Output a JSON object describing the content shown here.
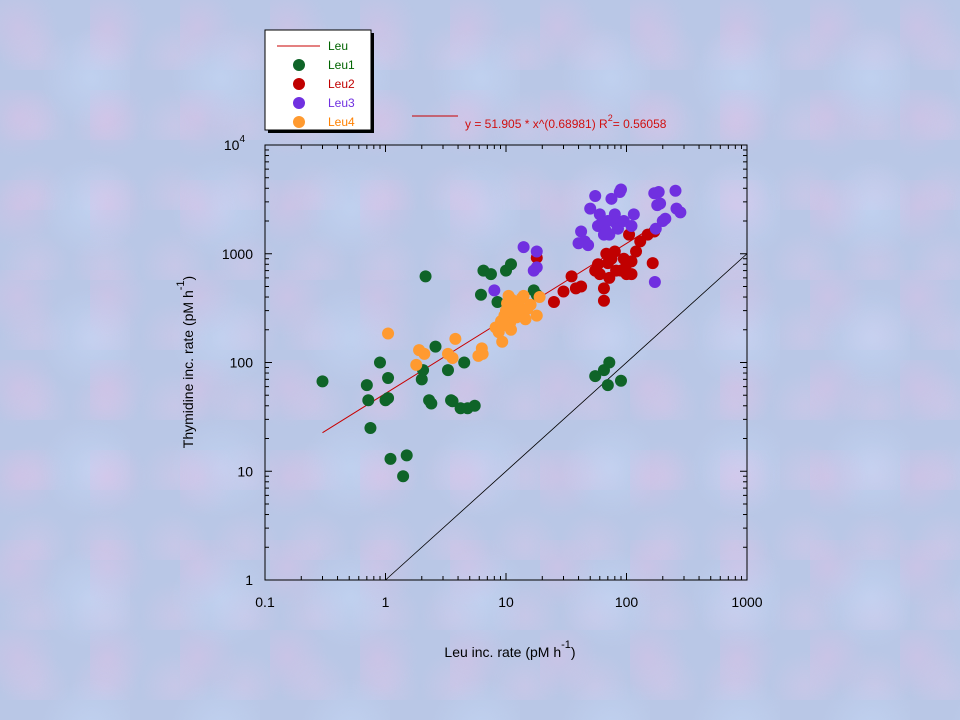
{
  "chart_data": {
    "type": "scatter",
    "xscale": "log",
    "yscale": "log",
    "xlim": [
      0.1,
      1000
    ],
    "ylim": [
      1,
      10000
    ],
    "xticks": [
      "0.1",
      "1",
      "10",
      "100",
      "1000"
    ],
    "yticks": [
      {
        "base": "1",
        "sup": ""
      },
      {
        "base": "10",
        "sup": ""
      },
      {
        "base": "100",
        "sup": ""
      },
      {
        "base": "1000",
        "sup": ""
      },
      {
        "base": "10",
        "sup": "4"
      }
    ],
    "xlabel": {
      "text": "Leu inc. rate (pM h",
      "sup": "-1",
      "close": ")"
    },
    "ylabel": {
      "text": "Thymidine inc. rate (pM h",
      "sup": "-1",
      "close": ")"
    },
    "legend": {
      "placement": "top-left, above plot",
      "entries": [
        {
          "label": "Leu",
          "marker": "line",
          "color": "#c80000",
          "text_color": "#006400"
        },
        {
          "label": "Leu1",
          "marker": "circle",
          "color": "#0f6428",
          "text_color": "#006400"
        },
        {
          "label": "Leu2",
          "marker": "circle",
          "color": "#c00000",
          "text_color": "#c00000"
        },
        {
          "label": "Leu3",
          "marker": "circle",
          "color": "#7030e0",
          "text_color": "#7030e0"
        },
        {
          "label": "Leu4",
          "marker": "circle",
          "color": "#ff9a30",
          "text_color": "#ff8000"
        }
      ]
    },
    "fit": {
      "label_prefix": "y = 51.905 * x^(0.68981)   R",
      "label_sup": "2",
      "label_suffix": "= 0.56058",
      "a": 51.905,
      "b": 0.68981,
      "x_range": [
        0.3,
        200
      ],
      "color": "#c80000"
    },
    "reference_line": {
      "points": [
        [
          1,
          1
        ],
        [
          1000,
          1000
        ]
      ],
      "color": "#000000"
    },
    "series": [
      {
        "name": "Leu1",
        "color": "#0f6428",
        "points": [
          [
            0.3,
            67
          ],
          [
            0.7,
            62
          ],
          [
            0.72,
            45
          ],
          [
            0.75,
            25
          ],
          [
            0.9,
            100
          ],
          [
            1.0,
            45
          ],
          [
            1.05,
            47
          ],
          [
            1.05,
            72
          ],
          [
            1.1,
            13
          ],
          [
            1.4,
            9
          ],
          [
            1.5,
            14
          ],
          [
            2.0,
            70
          ],
          [
            2.05,
            85
          ],
          [
            2.15,
            620
          ],
          [
            2.3,
            45
          ],
          [
            2.4,
            42
          ],
          [
            2.6,
            140
          ],
          [
            3.3,
            85
          ],
          [
            3.5,
            45
          ],
          [
            3.6,
            44
          ],
          [
            4.2,
            38
          ],
          [
            4.5,
            100
          ],
          [
            4.8,
            38
          ],
          [
            5.5,
            40
          ],
          [
            6.2,
            420
          ],
          [
            6.5,
            700
          ],
          [
            7.5,
            650
          ],
          [
            8.5,
            360
          ],
          [
            10,
            700
          ],
          [
            11,
            800
          ],
          [
            17,
            460
          ],
          [
            18,
            420
          ],
          [
            55,
            75
          ],
          [
            65,
            85
          ],
          [
            70,
            62
          ],
          [
            72,
            100
          ],
          [
            90,
            68
          ]
        ]
      },
      {
        "name": "Leu2",
        "color": "#c00000",
        "points": [
          [
            18,
            920
          ],
          [
            25,
            360
          ],
          [
            30,
            450
          ],
          [
            35,
            620
          ],
          [
            38,
            480
          ],
          [
            42,
            500
          ],
          [
            55,
            700
          ],
          [
            58,
            800
          ],
          [
            60,
            650
          ],
          [
            65,
            480
          ],
          [
            65,
            370
          ],
          [
            68,
            1000
          ],
          [
            70,
            820
          ],
          [
            72,
            600
          ],
          [
            75,
            900
          ],
          [
            80,
            1050
          ],
          [
            82,
            700
          ],
          [
            90,
            700
          ],
          [
            95,
            900
          ],
          [
            100,
            650
          ],
          [
            100,
            800
          ],
          [
            105,
            1500
          ],
          [
            110,
            650
          ],
          [
            110,
            850
          ],
          [
            120,
            1050
          ],
          [
            130,
            1300
          ],
          [
            150,
            1500
          ],
          [
            165,
            820
          ],
          [
            170,
            1600
          ]
        ]
      },
      {
        "name": "Leu3",
        "color": "#7030e0",
        "points": [
          [
            8,
            460
          ],
          [
            14,
            1150
          ],
          [
            17,
            700
          ],
          [
            18,
            750
          ],
          [
            18,
            1050
          ],
          [
            40,
            1250
          ],
          [
            42,
            1600
          ],
          [
            45,
            1300
          ],
          [
            48,
            1200
          ],
          [
            50,
            2600
          ],
          [
            55,
            3400
          ],
          [
            58,
            1800
          ],
          [
            60,
            2300
          ],
          [
            62,
            1900
          ],
          [
            65,
            1500
          ],
          [
            68,
            1600
          ],
          [
            70,
            2000
          ],
          [
            72,
            1500
          ],
          [
            75,
            3200
          ],
          [
            80,
            2300
          ],
          [
            82,
            1900
          ],
          [
            85,
            1700
          ],
          [
            88,
            3700
          ],
          [
            90,
            3900
          ],
          [
            95,
            2000
          ],
          [
            110,
            1800
          ],
          [
            115,
            2300
          ],
          [
            170,
            3600
          ],
          [
            172,
            550
          ],
          [
            175,
            1700
          ],
          [
            180,
            2800
          ],
          [
            185,
            3700
          ],
          [
            190,
            2900
          ],
          [
            200,
            2000
          ],
          [
            210,
            2100
          ],
          [
            255,
            3800
          ],
          [
            260,
            2600
          ],
          [
            280,
            2400
          ]
        ]
      },
      {
        "name": "Leu4",
        "color": "#ff9a30",
        "points": [
          [
            1.05,
            185
          ],
          [
            1.8,
            95
          ],
          [
            1.9,
            130
          ],
          [
            2.1,
            120
          ],
          [
            3.3,
            120
          ],
          [
            3.6,
            110
          ],
          [
            3.8,
            165
          ],
          [
            5.9,
            115
          ],
          [
            6.3,
            135
          ],
          [
            6.4,
            120
          ],
          [
            8.2,
            210
          ],
          [
            8.7,
            190
          ],
          [
            9.1,
            240
          ],
          [
            9.3,
            155
          ],
          [
            9.7,
            270
          ],
          [
            10,
            300
          ],
          [
            10.2,
            350
          ],
          [
            10.5,
            410
          ],
          [
            10.8,
            230
          ],
          [
            11.1,
            380
          ],
          [
            11.4,
            290
          ],
          [
            11.8,
            330
          ],
          [
            12.2,
            260
          ],
          [
            12.7,
            350
          ],
          [
            13,
            300
          ],
          [
            13.5,
            390
          ],
          [
            14,
            410
          ],
          [
            14.5,
            250
          ],
          [
            15,
            310
          ],
          [
            16,
            340
          ],
          [
            18,
            270
          ],
          [
            19,
            400
          ],
          [
            9.6,
            220
          ],
          [
            11,
            200
          ]
        ]
      }
    ]
  }
}
